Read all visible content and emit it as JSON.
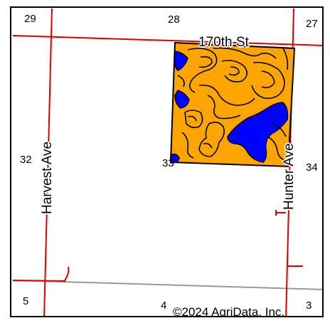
{
  "map": {
    "sections": {
      "s29": "29",
      "s28": "28",
      "s27": "27",
      "s32": "32",
      "s33": "33",
      "s34": "34",
      "s5": "5",
      "s4": "4",
      "s3": "3"
    },
    "roads": {
      "north": "170th St",
      "west": "Harvest Ave",
      "east": "Hunter Ave"
    },
    "copyright": "©2024 AgriData, Inc.",
    "colors": {
      "field_fill": "#FFA500",
      "water_fill": "#0000FF",
      "road_line": "#E00000",
      "boundary_line": "#000000",
      "gray_line": "#999999"
    }
  }
}
